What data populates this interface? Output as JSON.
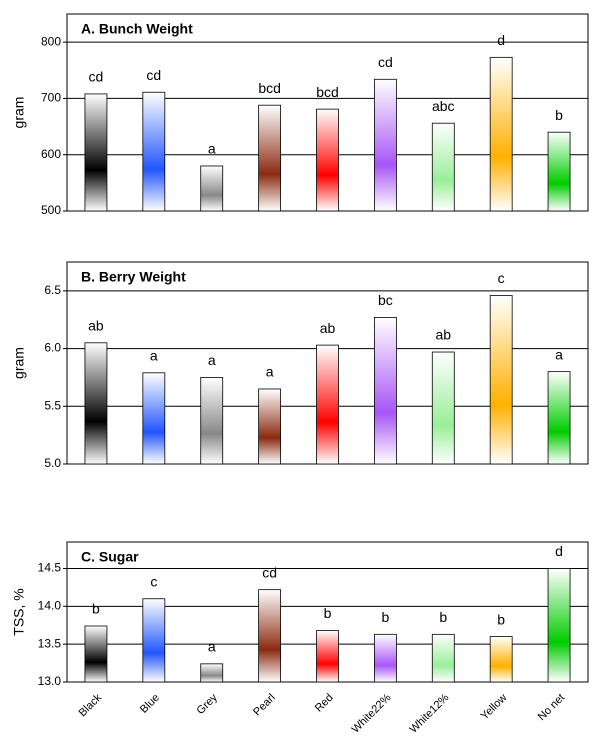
{
  "chart_data": [
    {
      "type": "bar",
      "title": "A. Bunch Weight",
      "y_label": "gram",
      "values": [
        708,
        711,
        580,
        688,
        681,
        734,
        656,
        773,
        640
      ],
      "annotations": [
        "cd",
        "cd",
        "a",
        "bcd",
        "bcd",
        "cd",
        "abc",
        "d",
        "b"
      ],
      "colors": [
        "#000000",
        "#2255ff",
        "#888888",
        "#8b2a10",
        "#ff0000",
        "#a855f7",
        "#99ee99",
        "#ffb000",
        "#00cc00"
      ],
      "ylim": [
        500,
        850
      ],
      "yticks": [
        500,
        600,
        700,
        800
      ],
      "grid": true
    },
    {
      "type": "bar",
      "title": "B. Berry Weight",
      "y_label": "gram",
      "values": [
        6.05,
        5.79,
        5.75,
        5.65,
        6.03,
        6.27,
        5.97,
        6.46,
        5.8
      ],
      "annotations": [
        "ab",
        "a",
        "a",
        "a",
        "ab",
        "bc",
        "ab",
        "c",
        "a"
      ],
      "colors": [
        "#000000",
        "#2255ff",
        "#888888",
        "#8b2a10",
        "#ff0000",
        "#a855f7",
        "#99ee99",
        "#ffb000",
        "#00cc00"
      ],
      "ylim": [
        5.0,
        6.75
      ],
      "yticks": [
        {
          "value": 5.0,
          "label": "5.0"
        },
        5.5,
        {
          "value": 6.0,
          "label": "6.0"
        },
        6.5
      ],
      "grid": true
    },
    {
      "type": "bar",
      "title": "C. Sugar",
      "y_label": "TSS, %",
      "categories": [
        "Black",
        "Blue",
        "Grey",
        "Pearl",
        "Red",
        "White22%",
        "White12%",
        "Yellow",
        "No net"
      ],
      "values": [
        13.74,
        14.1,
        13.24,
        14.22,
        13.68,
        13.63,
        13.63,
        13.6,
        14.5
      ],
      "annotations": [
        "b",
        "c",
        "a",
        "cd",
        "b",
        "b",
        "b",
        "b",
        "d"
      ],
      "colors": [
        "#000000",
        "#2255ff",
        "#888888",
        "#8b2a10",
        "#ff0000",
        "#a855f7",
        "#99ee99",
        "#ffb000",
        "#00cc00"
      ],
      "ylim": [
        13.0,
        14.85
      ],
      "yticks": [
        {
          "value": 13.0,
          "label": "13.0"
        },
        13.5,
        {
          "value": 14.0,
          "label": "14.0"
        },
        14.5
      ],
      "grid": true
    }
  ]
}
